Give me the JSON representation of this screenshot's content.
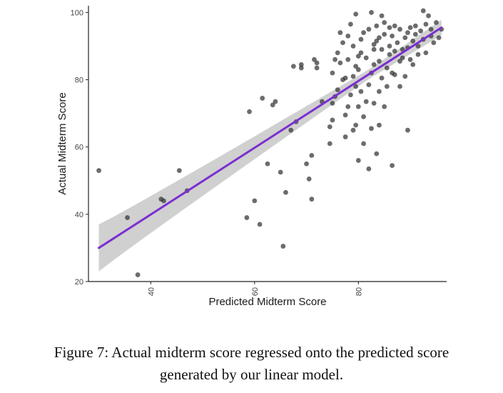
{
  "caption": {
    "line1": "Figure 7: Actual midterm score regressed onto the predicted score",
    "line2": "generated by our linear model."
  },
  "chart_data": {
    "type": "scatter",
    "title": "",
    "xlabel": "Predicted Midterm Score",
    "ylabel": "Actual Midterm Score",
    "xlim": [
      28,
      97
    ],
    "ylim": [
      20,
      102
    ],
    "xticks": [
      40,
      60,
      80
    ],
    "yticks": [
      20,
      40,
      60,
      80,
      100
    ],
    "grid": false,
    "legend": "none",
    "colors": {
      "points": "#333333",
      "fit_line": "#7b2fd0",
      "band": "#c8c8c8"
    },
    "fit": {
      "x": [
        30,
        96
      ],
      "y": [
        30,
        95.5
      ],
      "band_halfwidth_ends": [
        7,
        2.3
      ],
      "band_halfwidth_mid": 1.4,
      "band_mid_x": 82
    },
    "points": [
      {
        "x": 30,
        "y": 53
      },
      {
        "x": 35.5,
        "y": 39
      },
      {
        "x": 37.5,
        "y": 22
      },
      {
        "x": 42,
        "y": 44.5
      },
      {
        "x": 42.5,
        "y": 44
      },
      {
        "x": 45.5,
        "y": 53
      },
      {
        "x": 47,
        "y": 47
      },
      {
        "x": 58.5,
        "y": 39
      },
      {
        "x": 59,
        "y": 70.5
      },
      {
        "x": 60,
        "y": 44
      },
      {
        "x": 61,
        "y": 37
      },
      {
        "x": 61.5,
        "y": 74.5
      },
      {
        "x": 62.5,
        "y": 55
      },
      {
        "x": 63.5,
        "y": 72.5
      },
      {
        "x": 64,
        "y": 73.5
      },
      {
        "x": 65,
        "y": 52.5
      },
      {
        "x": 65.5,
        "y": 30.5
      },
      {
        "x": 66,
        "y": 46.5
      },
      {
        "x": 67,
        "y": 65
      },
      {
        "x": 67.5,
        "y": 84
      },
      {
        "x": 68,
        "y": 67.5
      },
      {
        "x": 69,
        "y": 84.5
      },
      {
        "x": 69,
        "y": 83.5
      },
      {
        "x": 70,
        "y": 55
      },
      {
        "x": 70.5,
        "y": 50.5
      },
      {
        "x": 71,
        "y": 44.5
      },
      {
        "x": 71,
        "y": 57.5
      },
      {
        "x": 71.5,
        "y": 86
      },
      {
        "x": 72,
        "y": 85
      },
      {
        "x": 72,
        "y": 83.5
      },
      {
        "x": 73,
        "y": 73.5
      },
      {
        "x": 74.5,
        "y": 61
      },
      {
        "x": 74.5,
        "y": 66
      },
      {
        "x": 75,
        "y": 68
      },
      {
        "x": 75,
        "y": 73
      },
      {
        "x": 75,
        "y": 82
      },
      {
        "x": 75.5,
        "y": 75
      },
      {
        "x": 75.5,
        "y": 86
      },
      {
        "x": 76,
        "y": 77
      },
      {
        "x": 76,
        "y": 88
      },
      {
        "x": 76.5,
        "y": 85
      },
      {
        "x": 76.5,
        "y": 94
      },
      {
        "x": 77,
        "y": 91
      },
      {
        "x": 77,
        "y": 80
      },
      {
        "x": 77.5,
        "y": 63
      },
      {
        "x": 77.5,
        "y": 69.5
      },
      {
        "x": 78,
        "y": 72
      },
      {
        "x": 78,
        "y": 93
      },
      {
        "x": 78,
        "y": 86
      },
      {
        "x": 78.5,
        "y": 96.5
      },
      {
        "x": 78.5,
        "y": 75.5
      },
      {
        "x": 79,
        "y": 65
      },
      {
        "x": 79,
        "y": 81
      },
      {
        "x": 79,
        "y": 90
      },
      {
        "x": 79.5,
        "y": 66.5
      },
      {
        "x": 79.5,
        "y": 99.5
      },
      {
        "x": 79.5,
        "y": 84
      },
      {
        "x": 79.5,
        "y": 78
      },
      {
        "x": 80,
        "y": 56
      },
      {
        "x": 80,
        "y": 72
      },
      {
        "x": 80,
        "y": 83
      },
      {
        "x": 80.5,
        "y": 88
      },
      {
        "x": 80.5,
        "y": 92
      },
      {
        "x": 80.5,
        "y": 76.5
      },
      {
        "x": 81,
        "y": 61
      },
      {
        "x": 81,
        "y": 69
      },
      {
        "x": 81.5,
        "y": 73.5
      },
      {
        "x": 81.5,
        "y": 86.5
      },
      {
        "x": 82,
        "y": 95
      },
      {
        "x": 82,
        "y": 53.5
      },
      {
        "x": 82,
        "y": 78.5
      },
      {
        "x": 82.5,
        "y": 65.5
      },
      {
        "x": 82.5,
        "y": 82
      },
      {
        "x": 82.5,
        "y": 100
      },
      {
        "x": 83,
        "y": 90.5
      },
      {
        "x": 83,
        "y": 73
      },
      {
        "x": 83,
        "y": 84.5
      },
      {
        "x": 83,
        "y": 89
      },
      {
        "x": 83.5,
        "y": 96
      },
      {
        "x": 83.5,
        "y": 58
      },
      {
        "x": 84,
        "y": 66.5
      },
      {
        "x": 84,
        "y": 76.5
      },
      {
        "x": 84,
        "y": 92.5
      },
      {
        "x": 84,
        "y": 85.5
      },
      {
        "x": 84.5,
        "y": 80.5
      },
      {
        "x": 84.5,
        "y": 99
      },
      {
        "x": 84.5,
        "y": 89
      },
      {
        "x": 85,
        "y": 72
      },
      {
        "x": 85,
        "y": 93.5
      },
      {
        "x": 85.5,
        "y": 83.5
      },
      {
        "x": 85.5,
        "y": 78
      },
      {
        "x": 86,
        "y": 95.5
      },
      {
        "x": 86,
        "y": 90
      },
      {
        "x": 86,
        "y": 87.5
      },
      {
        "x": 86.5,
        "y": 82
      },
      {
        "x": 86.5,
        "y": 54.5
      },
      {
        "x": 86.5,
        "y": 93
      },
      {
        "x": 87,
        "y": 81.5
      },
      {
        "x": 87,
        "y": 96
      },
      {
        "x": 87,
        "y": 88.5
      },
      {
        "x": 87.5,
        "y": 91
      },
      {
        "x": 88,
        "y": 78
      },
      {
        "x": 88,
        "y": 85.5
      },
      {
        "x": 88,
        "y": 95
      },
      {
        "x": 88.5,
        "y": 89
      },
      {
        "x": 88.5,
        "y": 86.5
      },
      {
        "x": 89,
        "y": 92.5
      },
      {
        "x": 89,
        "y": 81
      },
      {
        "x": 89.5,
        "y": 65
      },
      {
        "x": 89.5,
        "y": 94
      },
      {
        "x": 89.5,
        "y": 89.5
      },
      {
        "x": 90,
        "y": 86
      },
      {
        "x": 90,
        "y": 95.5
      },
      {
        "x": 90.5,
        "y": 91.5
      },
      {
        "x": 90.5,
        "y": 84.5
      },
      {
        "x": 91,
        "y": 93.5
      },
      {
        "x": 91,
        "y": 96
      },
      {
        "x": 91.5,
        "y": 90
      },
      {
        "x": 91.5,
        "y": 87.5
      },
      {
        "x": 92,
        "y": 94.5
      },
      {
        "x": 92.5,
        "y": 100.5
      },
      {
        "x": 92.5,
        "y": 92
      },
      {
        "x": 93,
        "y": 88
      },
      {
        "x": 93,
        "y": 96.5
      },
      {
        "x": 93.5,
        "y": 99
      },
      {
        "x": 94,
        "y": 93
      },
      {
        "x": 94,
        "y": 95
      },
      {
        "x": 94.5,
        "y": 91
      },
      {
        "x": 95,
        "y": 97
      },
      {
        "x": 95.5,
        "y": 92.5
      },
      {
        "x": 96,
        "y": 95
      },
      {
        "x": 80,
        "y": 87
      },
      {
        "x": 77.5,
        "y": 80.5
      },
      {
        "x": 81,
        "y": 94
      },
      {
        "x": 85,
        "y": 97
      },
      {
        "x": 83.5,
        "y": 91.5
      }
    ]
  }
}
